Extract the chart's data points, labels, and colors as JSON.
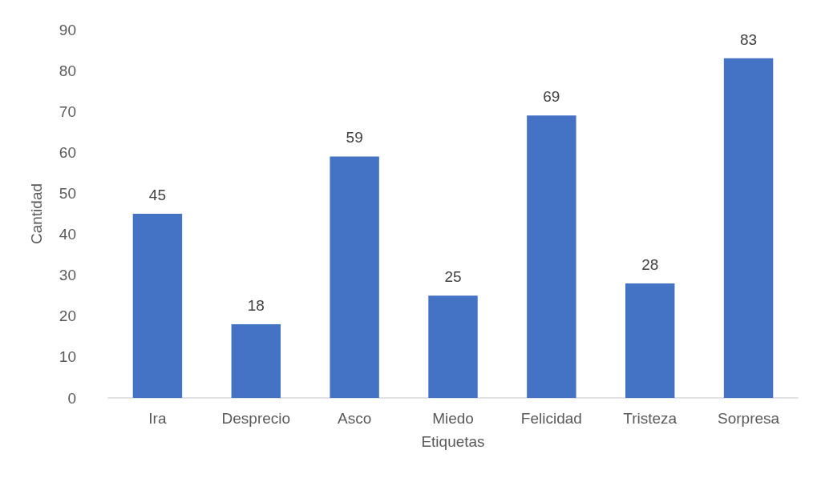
{
  "chart_data": {
    "type": "bar",
    "xlabel": "Etiquetas",
    "ylabel": "Cantidad",
    "categories": [
      "Ira",
      "Desprecio",
      "Asco",
      "Miedo",
      "Felicidad",
      "Tristeza",
      "Sorpresa"
    ],
    "values": [
      45,
      18,
      59,
      25,
      69,
      28,
      83
    ],
    "color": "#4472c4",
    "ylim": [
      0,
      90
    ],
    "yticks": [
      0,
      10,
      20,
      30,
      40,
      50,
      60,
      70,
      80,
      90
    ],
    "grid": false,
    "data_labels": true
  }
}
